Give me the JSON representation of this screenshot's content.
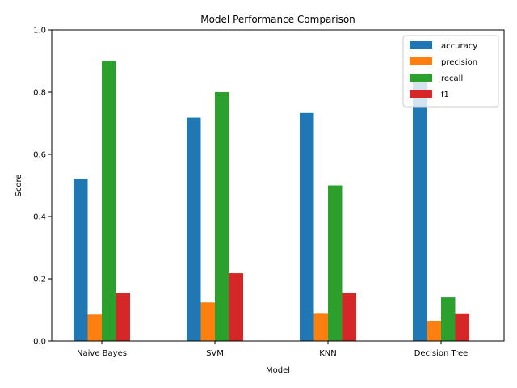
{
  "chart_data": {
    "type": "bar",
    "title": "Model Performance Comparison",
    "xlabel": "Model",
    "ylabel": "Score",
    "ylim": [
      0,
      1.0
    ],
    "yticks": [
      0.0,
      0.2,
      0.4,
      0.6,
      0.8,
      1.0
    ],
    "ytick_labels": [
      "0.0",
      "0.2",
      "0.4",
      "0.6",
      "0.8",
      "1.0"
    ],
    "categories": [
      "Naive Bayes",
      "SVM",
      "KNN",
      "Decision Tree"
    ],
    "series": [
      {
        "name": "accuracy",
        "color": "#1f77b4",
        "values": [
          0.522,
          0.718,
          0.733,
          0.837
        ]
      },
      {
        "name": "precision",
        "color": "#ff7f0e",
        "values": [
          0.085,
          0.124,
          0.09,
          0.065
        ]
      },
      {
        "name": "recall",
        "color": "#2ca02c",
        "values": [
          0.9,
          0.8,
          0.5,
          0.14
        ]
      },
      {
        "name": "f1",
        "color": "#d62728",
        "values": [
          0.155,
          0.218,
          0.155,
          0.089
        ]
      }
    ],
    "legend": "top-right",
    "grid": false
  }
}
